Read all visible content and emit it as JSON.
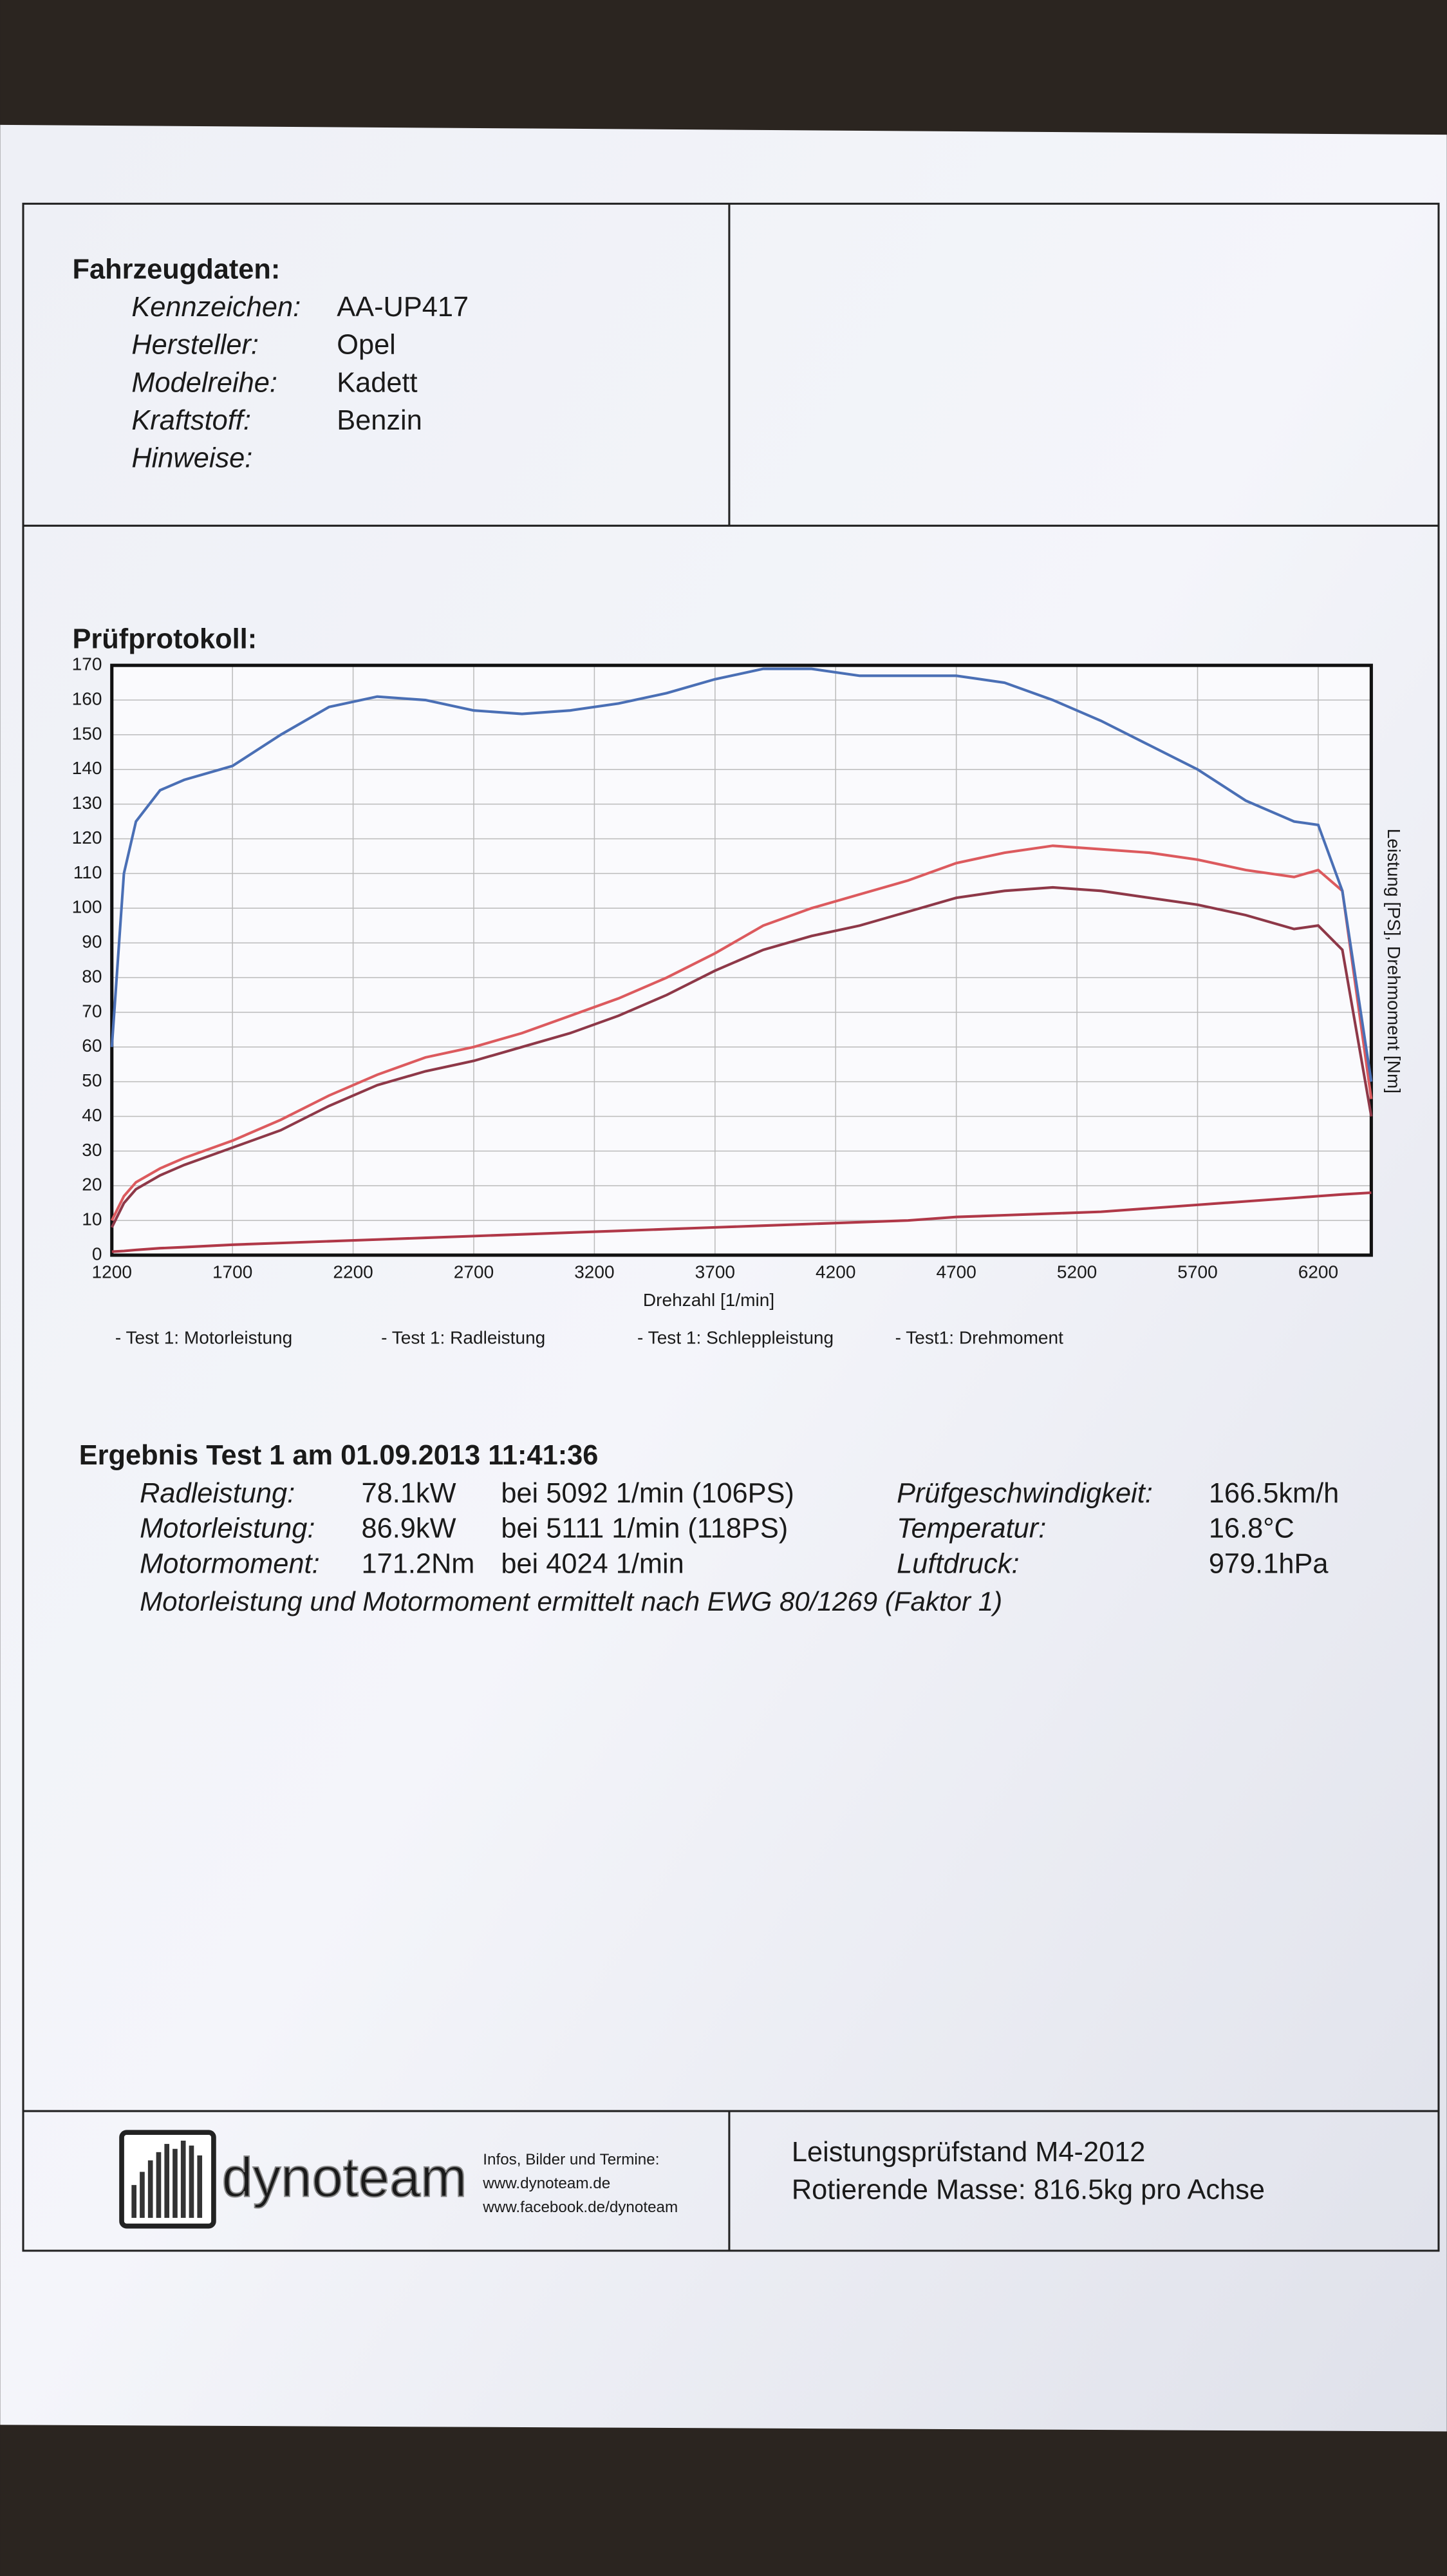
{
  "vehicle": {
    "heading": "Fahrzeugdaten:",
    "fields": [
      {
        "label": "Kennzeichen:",
        "value": "AA-UP417"
      },
      {
        "label": "Hersteller:",
        "value": "Opel"
      },
      {
        "label": "Modelreihe:",
        "value": "Kadett"
      },
      {
        "label": "Kraftstoff:",
        "value": "Benzin"
      },
      {
        "label": "Hinweise:"
      }
    ]
  },
  "chart_data": {
    "type": "line",
    "title": "Prüfprotokoll:",
    "x_label": "Drehzahl [1/min]",
    "y_label": "Leistung [PS], Drehmoment [Nm]",
    "x": [
      1200,
      1250,
      1300,
      1400,
      1500,
      1700,
      1900,
      2100,
      2300,
      2500,
      2700,
      2900,
      3100,
      3300,
      3500,
      3700,
      3900,
      4100,
      4300,
      4500,
      4700,
      4900,
      5100,
      5300,
      5500,
      5700,
      5900,
      6100,
      6200,
      6300,
      6420
    ],
    "series": [
      {
        "name": "- Test 1: Motorleistung",
        "color": "#dc5a5e",
        "values": [
          10,
          17,
          21,
          25,
          28,
          33,
          39,
          46,
          52,
          57,
          60,
          64,
          69,
          74,
          80,
          87,
          95,
          100,
          104,
          108,
          113,
          116,
          118,
          117,
          116,
          114,
          111,
          109,
          111,
          105,
          45
        ]
      },
      {
        "name": "- Test 1: Radleistung",
        "color": "#8e3848",
        "values": [
          8,
          15,
          19,
          23,
          26,
          31,
          36,
          43,
          49,
          53,
          56,
          60,
          64,
          69,
          75,
          82,
          88,
          92,
          95,
          99,
          103,
          105,
          106,
          105,
          103,
          101,
          98,
          94,
          95,
          88,
          40
        ]
      },
      {
        "name": "- Test 1: Schleppleistung",
        "color": "#b03848",
        "values": [
          1,
          1.2,
          1.5,
          2,
          2.3,
          3,
          3.5,
          4,
          4.5,
          5,
          5.5,
          6,
          6.5,
          7,
          7.5,
          8,
          8.5,
          9,
          9.5,
          10,
          11,
          11.5,
          12,
          12.5,
          13.5,
          14.5,
          15.5,
          16.5,
          17,
          17.5,
          18
        ]
      },
      {
        "name": "- Test1: Drehmoment",
        "color": "#4a6fb5",
        "values": [
          60,
          110,
          125,
          134,
          137,
          141,
          150,
          158,
          161,
          160,
          157,
          156,
          157,
          159,
          162,
          166,
          169,
          169,
          167,
          167,
          167,
          165,
          160,
          154,
          147,
          140,
          131,
          125,
          124,
          105,
          50
        ]
      }
    ],
    "xlim": [
      1200,
      6420
    ],
    "xticks": [
      1200,
      1700,
      2200,
      2700,
      3200,
      3700,
      4200,
      4700,
      5200,
      5700,
      6200
    ],
    "ylim": [
      0,
      170
    ],
    "yticks": [
      0,
      10,
      20,
      30,
      40,
      50,
      60,
      70,
      80,
      90,
      100,
      110,
      120,
      130,
      140,
      150,
      160,
      170
    ],
    "grid": true,
    "legend": "bottom"
  },
  "results": {
    "heading": "Ergebnis Test 1 am 01.09.2013 11:41:36",
    "rows": [
      {
        "label": "Radleistung:",
        "value": "78.1kW",
        "detail": "bei 5092 1/min (106PS)"
      },
      {
        "label": "Motorleistung:",
        "value": "86.9kW",
        "detail": "bei 5111 1/min (118PS)"
      },
      {
        "label": "Motormoment:",
        "value": "171.2Nm",
        "detail": "bei 4024 1/min"
      }
    ],
    "conditions": [
      {
        "label": "Prüfgeschwindigkeit:",
        "value": "166.5km/h"
      },
      {
        "label": "Temperatur:",
        "value": "16.8°C"
      },
      {
        "label": "Luftdruck:",
        "value": "979.1hPa"
      }
    ],
    "note": "Motorleistung und Motormoment ermittelt nach EWG 80/1269 (Faktor 1)"
  },
  "footer": {
    "logo": "dynoteam",
    "info": [
      "Infos, Bilder und Termine:",
      "www.dynoteam.de",
      "www.facebook.de/dynoteam"
    ],
    "bench": [
      "Leistungsprüfstand M4-2012",
      "Rotierende Masse: 816.5kg pro Achse"
    ]
  }
}
